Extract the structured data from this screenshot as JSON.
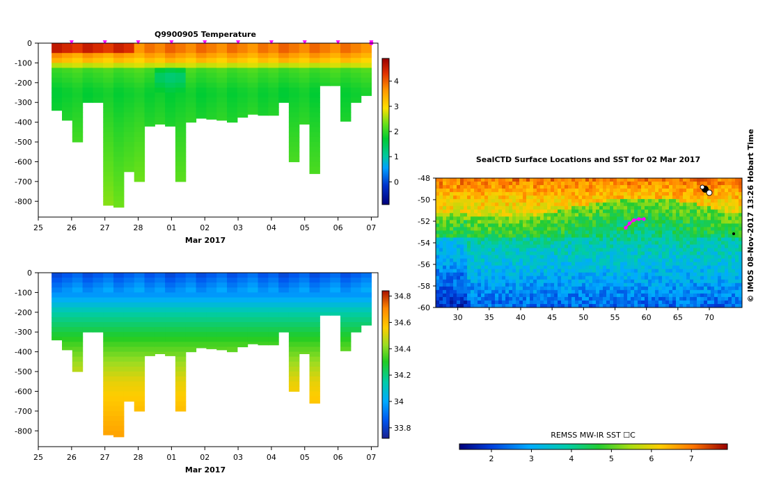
{
  "chart_data": [
    {
      "type": "heatmap",
      "title": "Q9900905  Temperature",
      "xlabel": "Mar 2017",
      "ylabel": "",
      "x_ticks": [
        "25",
        "26",
        "27",
        "28",
        "01",
        "02",
        "03",
        "04",
        "05",
        "06",
        "07"
      ],
      "y_ticks": [
        "0",
        "-100",
        "-200",
        "-300",
        "-400",
        "-500",
        "-600",
        "-700",
        "-800"
      ],
      "xlim": [
        0,
        10.2
      ],
      "ylim": [
        -880,
        0
      ],
      "colorbar": {
        "ticks": [
          "0",
          "1",
          "2",
          "3",
          "4"
        ],
        "range": [
          -0.9,
          4.9
        ]
      },
      "profile_max_depths": [
        -340,
        -390,
        -500,
        -300,
        -300,
        -820,
        -830,
        -650,
        -700,
        -420,
        -410,
        -420,
        -700,
        -400,
        -380,
        -385,
        -390,
        -400,
        -375,
        -360,
        -365,
        -365,
        -300,
        -600,
        -410,
        -660,
        -215,
        -215,
        -395,
        -300,
        -265
      ],
      "station_marker_color": "#ff00ff"
    },
    {
      "type": "heatmap",
      "title": "",
      "xlabel": "Mar 2017",
      "ylabel": "",
      "x_ticks": [
        "25",
        "26",
        "27",
        "28",
        "01",
        "02",
        "03",
        "04",
        "05",
        "06",
        "07"
      ],
      "y_ticks": [
        "0",
        "-100",
        "-200",
        "-300",
        "-400",
        "-500",
        "-600",
        "-700",
        "-800"
      ],
      "xlim": [
        0,
        10.2
      ],
      "ylim": [
        -880,
        0
      ],
      "colorbar": {
        "ticks": [
          "33.8",
          "34",
          "34.2",
          "34.4",
          "34.6",
          "34.8"
        ],
        "range": [
          33.72,
          34.84
        ]
      }
    },
    {
      "type": "heatmap",
      "title": "SealCTD Surface Locations and SST for 02 Mar 2017",
      "xlabel": "",
      "ylabel": "",
      "x_ticks": [
        "30",
        "35",
        "40",
        "45",
        "50",
        "55",
        "60",
        "65",
        "70"
      ],
      "y_ticks": [
        "-48",
        "-50",
        "-52",
        "-54",
        "-56",
        "-58",
        "-60"
      ],
      "xlim": [
        26.5,
        75.2
      ],
      "ylim": [
        -60,
        -48
      ],
      "colorbar": {
        "label": "REMSS MW-IR SST ☐C",
        "ticks": [
          "2",
          "3",
          "4",
          "5",
          "6",
          "7"
        ],
        "range": [
          1.2,
          7.9
        ]
      },
      "track": [
        [
          56.7,
          -52.6
        ],
        [
          57.3,
          -52.2
        ],
        [
          58.0,
          -51.9
        ],
        [
          58.8,
          -51.8
        ],
        [
          59.6,
          -51.8
        ]
      ],
      "track_color": "#ff00ff"
    }
  ],
  "side_label": "©  IMOS 08-Nov-2017 13:26 Hobart Time"
}
